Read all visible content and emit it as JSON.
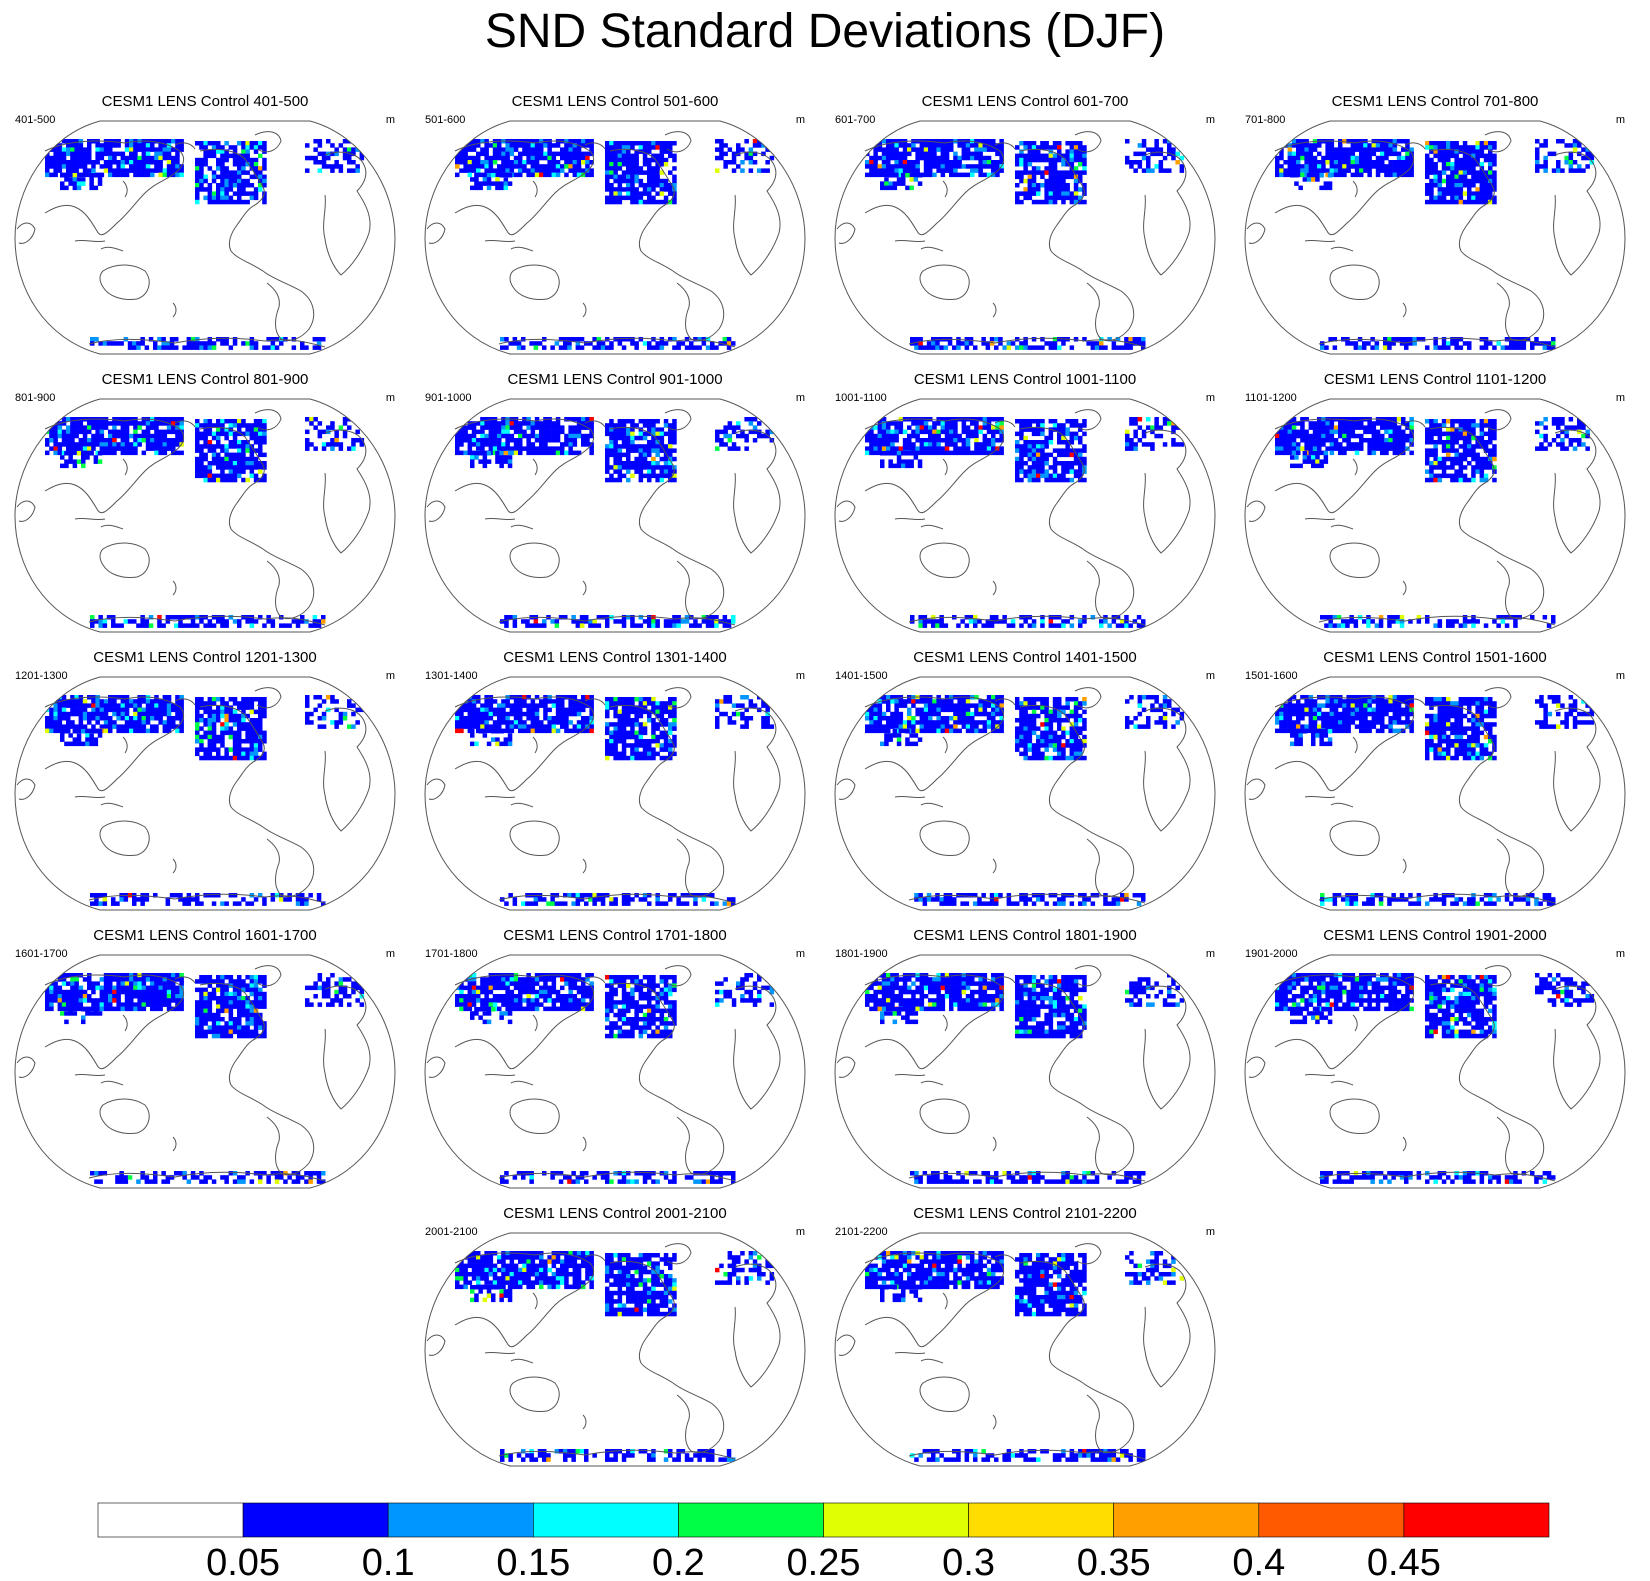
{
  "title": "SND Standard Deviations (DJF)",
  "colors": {
    "background": "#ffffff",
    "coast": "#555555",
    "levels": [
      "#ffffff",
      "#0000ff",
      "#0096ff",
      "#00ffff",
      "#00ff44",
      "#e0ff00",
      "#ffdd00",
      "#ffa000",
      "#ff5a00",
      "#ff0000"
    ]
  },
  "chart_data": {
    "type": "heatmap",
    "title": "SND Standard Deviations (DJF)",
    "units": "m",
    "projection": "robinson",
    "colorbar": {
      "ticks": [
        "0.05",
        "0.1",
        "0.15",
        "0.2",
        "0.25",
        "0.3",
        "0.35",
        "0.4",
        "0.45"
      ],
      "levels": [
        0.05,
        0.1,
        0.15,
        0.2,
        0.25,
        0.3,
        0.35,
        0.4,
        0.45
      ]
    },
    "panels": [
      {
        "title": "CESM1 LENS Control 401-500",
        "left": "401-500",
        "right": "m"
      },
      {
        "title": "CESM1 LENS Control 501-600",
        "left": "501-600",
        "right": "m"
      },
      {
        "title": "CESM1 LENS Control 601-700",
        "left": "601-700",
        "right": "m"
      },
      {
        "title": "CESM1 LENS Control 701-800",
        "left": "701-800",
        "right": "m"
      },
      {
        "title": "CESM1 LENS Control 801-900",
        "left": "801-900",
        "right": "m"
      },
      {
        "title": "CESM1 LENS Control 901-1000",
        "left": "901-1000",
        "right": "m"
      },
      {
        "title": "CESM1 LENS Control 1001-1100",
        "left": "1001-1100",
        "right": "m"
      },
      {
        "title": "CESM1 LENS Control 1101-1200",
        "left": "1101-1200",
        "right": "m"
      },
      {
        "title": "CESM1 LENS Control 1201-1300",
        "left": "1201-1300",
        "right": "m"
      },
      {
        "title": "CESM1 LENS Control 1301-1400",
        "left": "1301-1400",
        "right": "m"
      },
      {
        "title": "CESM1 LENS Control 1401-1500",
        "left": "1401-1500",
        "right": "m"
      },
      {
        "title": "CESM1 LENS Control 1501-1600",
        "left": "1501-1600",
        "right": "m"
      },
      {
        "title": "CESM1 LENS Control 1601-1700",
        "left": "1601-1700",
        "right": "m"
      },
      {
        "title": "CESM1 LENS Control 1701-1800",
        "left": "1701-1800",
        "right": "m"
      },
      {
        "title": "CESM1 LENS Control 1801-1900",
        "left": "1801-1900",
        "right": "m"
      },
      {
        "title": "CESM1 LENS Control 1901-2000",
        "left": "1901-2000",
        "right": "m"
      },
      {
        "title": "CESM1 LENS Control 2001-2100",
        "left": "2001-2100",
        "right": "m"
      },
      {
        "title": "CESM1 LENS Control 2101-2200",
        "left": "2101-2200",
        "right": "m"
      }
    ]
  }
}
